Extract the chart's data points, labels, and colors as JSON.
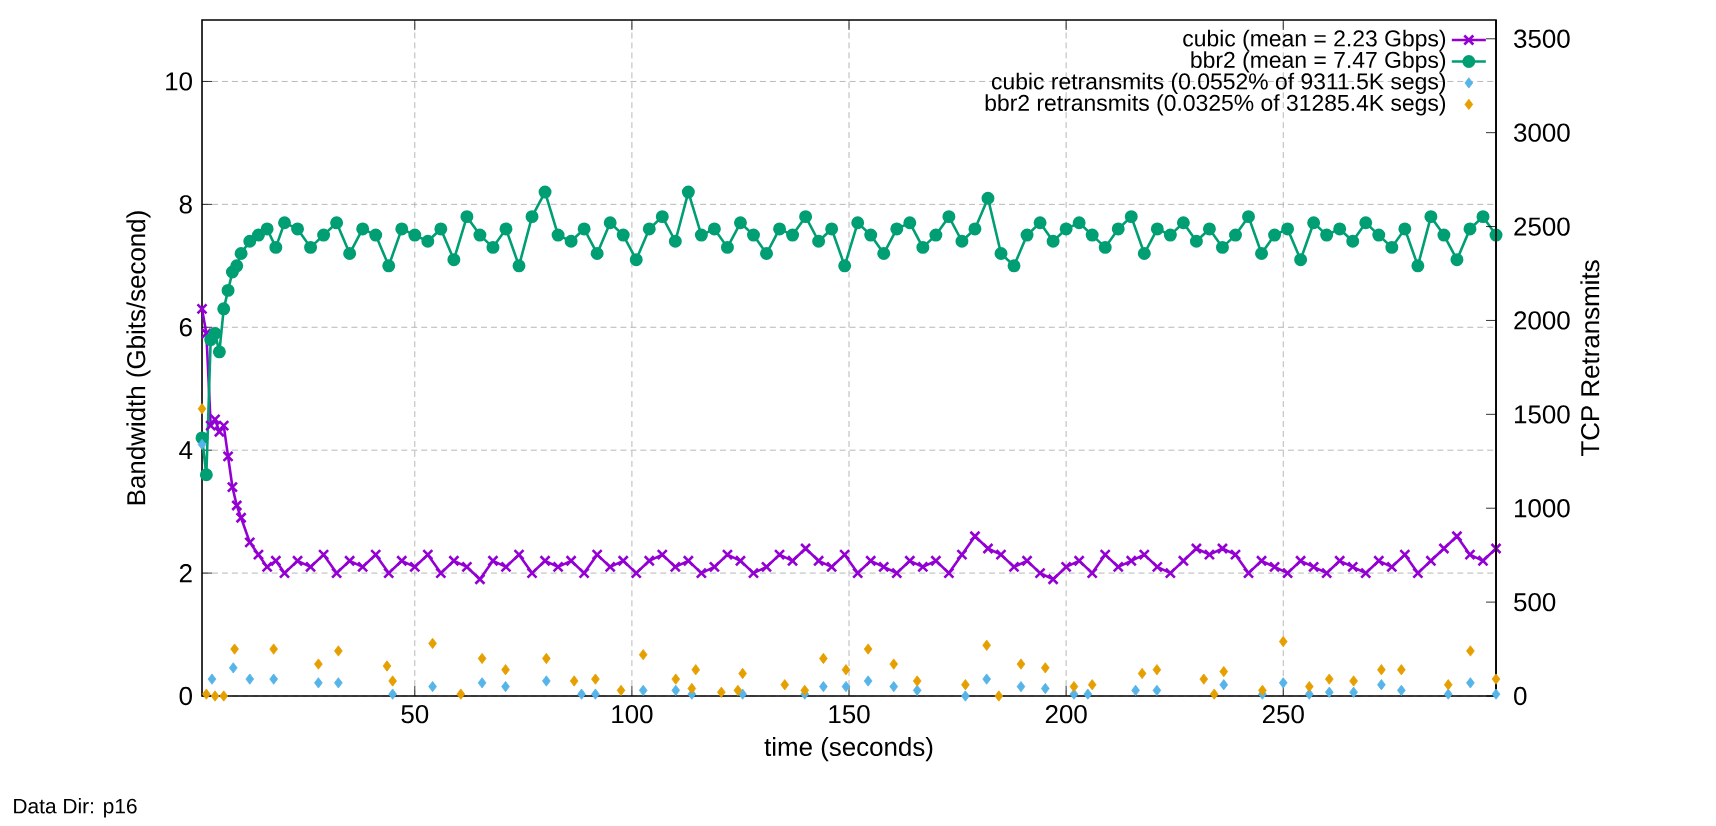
{
  "chart_data": {
    "type": "line",
    "xlabel": "time (seconds)",
    "ylabel": "Bandwidth (Gbits/second)",
    "y2label": "TCP Retransmits",
    "xlim": [
      1,
      299
    ],
    "xticks": [
      50,
      100,
      150,
      200,
      250
    ],
    "ylim": [
      0,
      11
    ],
    "yticks": [
      0,
      2,
      4,
      6,
      8,
      10
    ],
    "y2lim": [
      0,
      3600
    ],
    "y2ticks": [
      0,
      500,
      1000,
      1500,
      2000,
      2500,
      3000,
      3500
    ],
    "grid": true,
    "legend": "top right",
    "annotations": [
      "Data Dir: p16"
    ],
    "series": [
      {
        "name": "cubic (mean = 2.23 Gbps)",
        "color": "#9400d3",
        "marker": "cross",
        "x": [
          1,
          2,
          3,
          4,
          5,
          6,
          7,
          8,
          9,
          10,
          12,
          14,
          16,
          18,
          20,
          23,
          26,
          29,
          32,
          35,
          38,
          41,
          44,
          47,
          50,
          53,
          56,
          59,
          62,
          65,
          68,
          71,
          74,
          77,
          80,
          83,
          86,
          89,
          92,
          95,
          98,
          101,
          104,
          107,
          110,
          113,
          116,
          119,
          122,
          125,
          128,
          131,
          134,
          137,
          140,
          143,
          146,
          149,
          152,
          155,
          158,
          161,
          164,
          167,
          170,
          173,
          176,
          179,
          182,
          185,
          188,
          191,
          194,
          197,
          200,
          203,
          206,
          209,
          212,
          215,
          218,
          221,
          224,
          227,
          230,
          233,
          236,
          239,
          242,
          245,
          248,
          251,
          254,
          257,
          260,
          263,
          266,
          269,
          272,
          275,
          278,
          281,
          284,
          287,
          290,
          293,
          296,
          299
        ],
        "values": [
          6.3,
          5.9,
          4.4,
          4.5,
          4.3,
          4.4,
          3.9,
          3.4,
          3.1,
          2.9,
          2.5,
          2.3,
          2.1,
          2.2,
          2.0,
          2.2,
          2.1,
          2.3,
          2.0,
          2.2,
          2.1,
          2.3,
          2.0,
          2.2,
          2.1,
          2.3,
          2.0,
          2.2,
          2.1,
          1.9,
          2.2,
          2.1,
          2.3,
          2.0,
          2.2,
          2.1,
          2.2,
          2.0,
          2.3,
          2.1,
          2.2,
          2.0,
          2.2,
          2.3,
          2.1,
          2.2,
          2.0,
          2.1,
          2.3,
          2.2,
          2.0,
          2.1,
          2.3,
          2.2,
          2.4,
          2.2,
          2.1,
          2.3,
          2.0,
          2.2,
          2.1,
          2.0,
          2.2,
          2.1,
          2.2,
          2.0,
          2.3,
          2.6,
          2.4,
          2.3,
          2.1,
          2.2,
          2.0,
          1.9,
          2.1,
          2.2,
          2.0,
          2.3,
          2.1,
          2.2,
          2.3,
          2.1,
          2.0,
          2.2,
          2.4,
          2.3,
          2.4,
          2.3,
          2.0,
          2.2,
          2.1,
          2.0,
          2.2,
          2.1,
          2.0,
          2.2,
          2.1,
          2.0,
          2.2,
          2.1,
          2.3,
          2.0,
          2.2,
          2.4,
          2.6,
          2.3,
          2.2,
          2.4
        ]
      },
      {
        "name": "bbr2 (mean = 7.47 Gbps)",
        "color": "#009e73",
        "marker": "circle",
        "x": [
          1,
          2,
          3,
          4,
          5,
          6,
          7,
          8,
          9,
          10,
          12,
          14,
          16,
          18,
          20,
          23,
          26,
          29,
          32,
          35,
          38,
          41,
          44,
          47,
          50,
          53,
          56,
          59,
          62,
          65,
          68,
          71,
          74,
          77,
          80,
          83,
          86,
          89,
          92,
          95,
          98,
          101,
          104,
          107,
          110,
          113,
          116,
          119,
          122,
          125,
          128,
          131,
          134,
          137,
          140,
          143,
          146,
          149,
          152,
          155,
          158,
          161,
          164,
          167,
          170,
          173,
          176,
          179,
          182,
          185,
          188,
          191,
          194,
          197,
          200,
          203,
          206,
          209,
          212,
          215,
          218,
          221,
          224,
          227,
          230,
          233,
          236,
          239,
          242,
          245,
          248,
          251,
          254,
          257,
          260,
          263,
          266,
          269,
          272,
          275,
          278,
          281,
          284,
          287,
          290,
          293,
          296,
          299
        ],
        "values": [
          4.2,
          3.6,
          5.8,
          5.9,
          5.6,
          6.3,
          6.6,
          6.9,
          7.0,
          7.2,
          7.4,
          7.5,
          7.6,
          7.3,
          7.7,
          7.6,
          7.3,
          7.5,
          7.7,
          7.2,
          7.6,
          7.5,
          7.0,
          7.6,
          7.5,
          7.4,
          7.6,
          7.1,
          7.8,
          7.5,
          7.3,
          7.6,
          7.0,
          7.8,
          8.2,
          7.5,
          7.4,
          7.6,
          7.2,
          7.7,
          7.5,
          7.1,
          7.6,
          7.8,
          7.4,
          8.2,
          7.5,
          7.6,
          7.3,
          7.7,
          7.5,
          7.2,
          7.6,
          7.5,
          7.8,
          7.4,
          7.6,
          7.0,
          7.7,
          7.5,
          7.2,
          7.6,
          7.7,
          7.3,
          7.5,
          7.8,
          7.4,
          7.6,
          8.1,
          7.2,
          7.0,
          7.5,
          7.7,
          7.4,
          7.6,
          7.7,
          7.5,
          7.3,
          7.6,
          7.8,
          7.2,
          7.6,
          7.5,
          7.7,
          7.4,
          7.6,
          7.3,
          7.5,
          7.8,
          7.2,
          7.5,
          7.6,
          7.1,
          7.7,
          7.5,
          7.6,
          7.4,
          7.7,
          7.5,
          7.3,
          7.6,
          7.0,
          7.8,
          7.5,
          7.1,
          7.6,
          7.8,
          7.5
        ]
      },
      {
        "name": "cubic retransmits (0.0552% of 9311.5K segs)",
        "color": "#56b4e9",
        "type": "scatter",
        "marker": "diamond",
        "axis": "y2",
        "x": [
          1,
          3.3,
          8.2,
          12,
          17.5,
          27.8,
          32.4,
          44.9,
          54.1,
          65.5,
          70.9,
          80.3,
          88.4,
          91.6,
          102.6,
          110.1,
          113.8,
          125.5,
          139.8,
          144.1,
          149.3,
          154.4,
          160.3,
          165.7,
          176.8,
          181.7,
          189.6,
          195.2,
          201.8,
          205,
          216,
          220.9,
          236.3,
          245.2,
          250,
          256,
          260.6,
          266.2,
          272.6,
          277.2,
          288,
          293.1,
          299
        ],
        "values": [
          1340,
          90,
          150,
          90,
          90,
          70,
          70,
          10,
          50,
          70,
          50,
          80,
          10,
          10,
          30,
          30,
          10,
          10,
          10,
          50,
          50,
          80,
          50,
          30,
          0,
          90,
          50,
          40,
          10,
          10,
          30,
          30,
          60,
          10,
          70,
          10,
          20,
          20,
          60,
          30,
          10,
          70,
          10
        ]
      },
      {
        "name": "bbr2 retransmits (0.0325% of 31285.4K segs)",
        "color": "#e69f00",
        "type": "scatter",
        "marker": "diamond",
        "axis": "y2",
        "x": [
          1,
          2,
          4,
          6,
          8.5,
          17.5,
          27.8,
          32.4,
          43.6,
          44.9,
          54.1,
          60.6,
          65.5,
          70.9,
          80.3,
          86.7,
          91.6,
          97.5,
          102.6,
          110.1,
          113.8,
          114.7,
          120.6,
          124.4,
          125.5,
          135.2,
          139.8,
          144.1,
          149.3,
          154.4,
          160.3,
          165.7,
          176.8,
          181.7,
          184.5,
          189.6,
          195.2,
          201.8,
          206,
          217.5,
          220.9,
          231.7,
          234.1,
          236.3,
          245.2,
          250,
          256,
          260.6,
          266.2,
          272.6,
          277.2,
          288,
          293.1,
          299
        ],
        "values": [
          1530,
          10,
          0,
          0,
          250,
          250,
          170,
          240,
          160,
          80,
          280,
          10,
          200,
          140,
          200,
          80,
          90,
          30,
          220,
          90,
          40,
          140,
          20,
          30,
          120,
          60,
          30,
          200,
          140,
          250,
          170,
          80,
          60,
          270,
          0,
          170,
          150,
          50,
          60,
          120,
          140,
          90,
          10,
          130,
          30,
          290,
          50,
          90,
          80,
          140,
          140,
          60,
          240,
          90
        ]
      }
    ]
  }
}
